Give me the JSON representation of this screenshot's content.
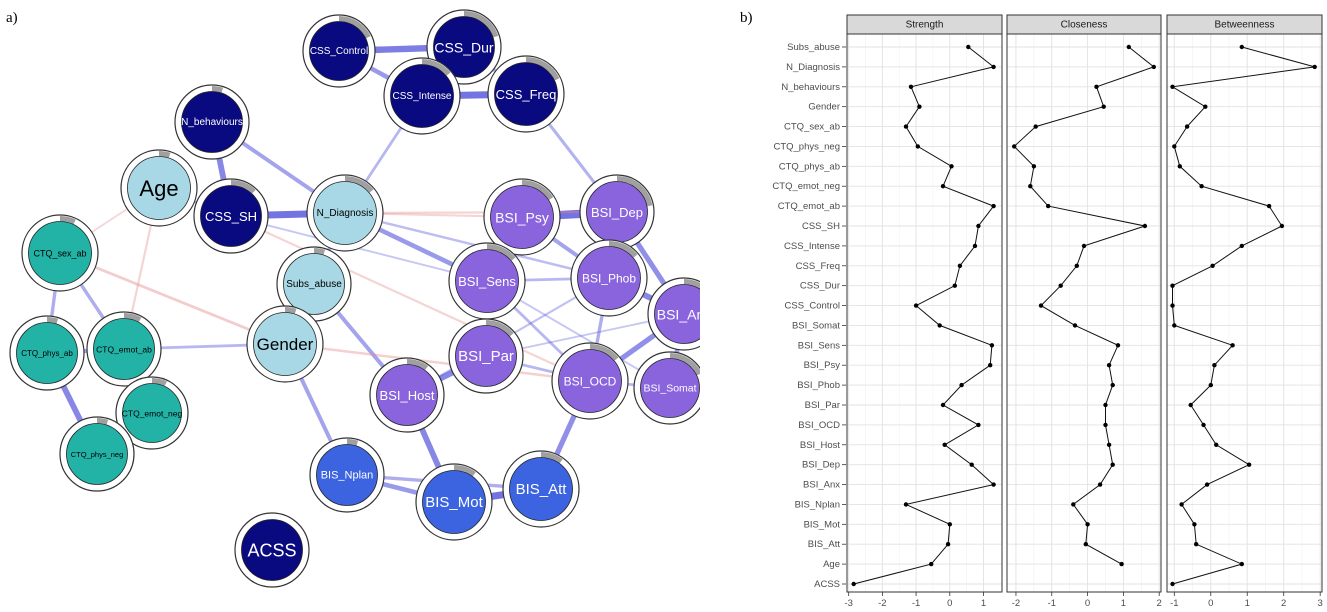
{
  "panel_labels": {
    "a": "a)",
    "b": "b)"
  },
  "colors": {
    "dark_navy": "#0a0a80",
    "light_blue": "#a8d8e6",
    "teal": "#22b2a6",
    "purple": "#8a64dc",
    "royal_blue": "#3c64e0",
    "positive_edge": "#5a5adc",
    "negative_edge": "#e48a8a",
    "ring_gray": "#a0a0a0"
  },
  "network": {
    "nodes": [
      {
        "id": "CSS_Control",
        "label": "CSS_Control",
        "group": "dark_navy",
        "pie": 0.82
      },
      {
        "id": "CSS_Dur",
        "label": "CSS_Dur",
        "group": "dark_navy",
        "pie": 0.8
      },
      {
        "id": "CSS_Intense",
        "label": "CSS_Intense",
        "group": "dark_navy",
        "pie": 0.86
      },
      {
        "id": "CSS_Freq",
        "label": "CSS_Freq",
        "group": "dark_navy",
        "pie": 0.82
      },
      {
        "id": "N_behaviours",
        "label": "N_behaviours",
        "group": "dark_navy",
        "pie": 0.95
      },
      {
        "id": "Age",
        "label": "Age",
        "group": "light_blue",
        "pie": 0.95
      },
      {
        "id": "CSS_SH",
        "label": "CSS_SH",
        "group": "dark_navy",
        "pie": 0.88
      },
      {
        "id": "N_Diagnosis",
        "label": "N_Diagnosis",
        "group": "light_blue",
        "pie": 0.86
      },
      {
        "id": "BSI_Psy",
        "label": "BSI_Psy",
        "group": "purple",
        "pie": 0.84
      },
      {
        "id": "BSI_Dep",
        "label": "BSI_Dep",
        "group": "purple",
        "pie": 0.78
      },
      {
        "id": "CTQ_sex_ab",
        "label": "CTQ_sex_ab",
        "group": "teal",
        "pie": 0.93
      },
      {
        "id": "Subs_abuse",
        "label": "Subs_abuse",
        "group": "light_blue",
        "pie": 0.95
      },
      {
        "id": "BSI_Sens",
        "label": "BSI_Sens",
        "group": "purple",
        "pie": 0.86
      },
      {
        "id": "BSI_Phob",
        "label": "BSI_Phob",
        "group": "purple",
        "pie": 0.86
      },
      {
        "id": "BSI_Anx",
        "label": "BSI_Anx",
        "group": "purple",
        "pie": 0.82
      },
      {
        "id": "Gender",
        "label": "Gender",
        "group": "light_blue",
        "pie": 0.95
      },
      {
        "id": "CTQ_phys_ab",
        "label": "CTQ_phys_ab",
        "group": "teal",
        "pie": 0.95
      },
      {
        "id": "CTQ_emot_ab",
        "label": "CTQ_emot_ab",
        "group": "teal",
        "pie": 0.92
      },
      {
        "id": "BSI_Par",
        "label": "BSI_Par",
        "group": "purple",
        "pie": 0.86
      },
      {
        "id": "BSI_OCD",
        "label": "BSI_OCD",
        "group": "purple",
        "pie": 0.86
      },
      {
        "id": "BSI_Somat",
        "label": "BSI_Somat",
        "group": "purple",
        "pie": 0.82
      },
      {
        "id": "BSI_Host",
        "label": "BSI_Host",
        "group": "purple",
        "pie": 0.9
      },
      {
        "id": "CTQ_emot_neg",
        "label": "CTQ_emot_neg",
        "group": "teal",
        "pie": 0.93
      },
      {
        "id": "CTQ_phys_neg",
        "label": "CTQ_phys_neg",
        "group": "teal",
        "pie": 0.95
      },
      {
        "id": "BIS_Nplan",
        "label": "BIS_Nplan",
        "group": "royal_blue",
        "pie": 0.95
      },
      {
        "id": "BIS_Mot",
        "label": "BIS_Mot",
        "group": "royal_blue",
        "pie": 0.9
      },
      {
        "id": "BIS_Att",
        "label": "BIS_Att",
        "group": "royal_blue",
        "pie": 0.9
      },
      {
        "id": "ACSS",
        "label": "ACSS",
        "group": "dark_navy",
        "pie": 0.0
      }
    ],
    "edges": [
      {
        "source": "CSS_Control",
        "target": "CSS_Dur",
        "weight": 0.9,
        "sign": "+"
      },
      {
        "source": "CSS_Control",
        "target": "CSS_Intense",
        "weight": 0.6,
        "sign": "+"
      },
      {
        "source": "CSS_Dur",
        "target": "CSS_Intense",
        "weight": 0.8,
        "sign": "+"
      },
      {
        "source": "CSS_Intense",
        "target": "CSS_Freq",
        "weight": 1.0,
        "sign": "+"
      },
      {
        "source": "CSS_Dur",
        "target": "CSS_Freq",
        "weight": 0.4,
        "sign": "+"
      },
      {
        "source": "CSS_Freq",
        "target": "BSI_Dep",
        "weight": 0.35,
        "sign": "+"
      },
      {
        "source": "CSS_Intense",
        "target": "N_Diagnosis",
        "weight": 0.3,
        "sign": "+"
      },
      {
        "source": "N_behaviours",
        "target": "CSS_SH",
        "weight": 0.8,
        "sign": "+"
      },
      {
        "source": "N_behaviours",
        "target": "N_Diagnosis",
        "weight": 0.5,
        "sign": "+"
      },
      {
        "source": "Age",
        "target": "CSS_SH",
        "weight": 0.3,
        "sign": "+"
      },
      {
        "source": "Age",
        "target": "CTQ_sex_ab",
        "weight": 0.15,
        "sign": "-"
      },
      {
        "source": "Age",
        "target": "CTQ_emot_ab",
        "weight": 0.2,
        "sign": "-"
      },
      {
        "source": "CSS_SH",
        "target": "N_Diagnosis",
        "weight": 1.0,
        "sign": "+"
      },
      {
        "source": "CSS_SH",
        "target": "BSI_Sens",
        "weight": 0.15,
        "sign": "+"
      },
      {
        "source": "N_Diagnosis",
        "target": "BSI_Psy",
        "weight": 0.2,
        "sign": "-"
      },
      {
        "source": "N_Diagnosis",
        "target": "BSI_Sens",
        "weight": 0.6,
        "sign": "+"
      },
      {
        "source": "N_Diagnosis",
        "target": "Subs_abuse",
        "weight": 0.4,
        "sign": "+"
      },
      {
        "source": "N_Diagnosis",
        "target": "BSI_Phob",
        "weight": 0.25,
        "sign": "+"
      },
      {
        "source": "BSI_Psy",
        "target": "BSI_Dep",
        "weight": 1.2,
        "sign": "+"
      },
      {
        "source": "BSI_Psy",
        "target": "BSI_Sens",
        "weight": 0.5,
        "sign": "+"
      },
      {
        "source": "BSI_Psy",
        "target": "BSI_Phob",
        "weight": 0.5,
        "sign": "+"
      },
      {
        "source": "BSI_Dep",
        "target": "BSI_Phob",
        "weight": 0.6,
        "sign": "+"
      },
      {
        "source": "BSI_Dep",
        "target": "BSI_Anx",
        "weight": 0.7,
        "sign": "+"
      },
      {
        "source": "BSI_Sens",
        "target": "BSI_Phob",
        "weight": 0.3,
        "sign": "+"
      },
      {
        "source": "BSI_Sens",
        "target": "BSI_Par",
        "weight": 0.4,
        "sign": "+"
      },
      {
        "source": "BSI_Sens",
        "target": "BSI_OCD",
        "weight": 0.3,
        "sign": "+"
      },
      {
        "source": "BSI_Phob",
        "target": "BSI_Anx",
        "weight": 0.8,
        "sign": "+"
      },
      {
        "source": "BSI_Phob",
        "target": "BSI_OCD",
        "weight": 0.4,
        "sign": "+"
      },
      {
        "source": "BSI_Anx",
        "target": "BSI_OCD",
        "weight": 0.7,
        "sign": "+"
      },
      {
        "source": "BSI_Anx",
        "target": "BSI_Somat",
        "weight": 0.6,
        "sign": "+"
      },
      {
        "source": "BSI_OCD",
        "target": "BSI_Somat",
        "weight": 0.3,
        "sign": "+"
      },
      {
        "source": "BSI_OCD",
        "target": "BIS_Att",
        "weight": 0.7,
        "sign": "+"
      },
      {
        "source": "BSI_OCD",
        "target": "BSI_Par",
        "weight": 0.3,
        "sign": "+"
      },
      {
        "source": "BSI_Par",
        "target": "BSI_Host",
        "weight": 0.8,
        "sign": "+"
      },
      {
        "source": "BSI_Host",
        "target": "BIS_Mot",
        "weight": 0.8,
        "sign": "+"
      },
      {
        "source": "BSI_Host",
        "target": "BSI_Phob",
        "weight": 0.2,
        "sign": "+"
      },
      {
        "source": "Subs_abuse",
        "target": "BSI_Host",
        "weight": 0.5,
        "sign": "+"
      },
      {
        "source": "Subs_abuse",
        "target": "Gender",
        "weight": 0.3,
        "sign": "+"
      },
      {
        "source": "Gender",
        "target": "BIS_Nplan",
        "weight": 0.5,
        "sign": "+"
      },
      {
        "source": "Gender",
        "target": "CTQ_emot_ab",
        "weight": 0.3,
        "sign": "+"
      },
      {
        "source": "Gender",
        "target": "BSI_OCD",
        "weight": 0.25,
        "sign": "-"
      },
      {
        "source": "Gender",
        "target": "CTQ_sex_ab",
        "weight": 0.3,
        "sign": "-"
      },
      {
        "source": "CSS_SH",
        "target": "BSI_OCD",
        "weight": 0.2,
        "sign": "-"
      },
      {
        "source": "N_Diagnosis",
        "target": "BSI_Dep",
        "weight": 0.2,
        "sign": "-"
      },
      {
        "source": "CTQ_sex_ab",
        "target": "CTQ_phys_ab",
        "weight": 0.4,
        "sign": "+"
      },
      {
        "source": "CTQ_sex_ab",
        "target": "CTQ_emot_ab",
        "weight": 0.4,
        "sign": "+"
      },
      {
        "source": "CTQ_phys_ab",
        "target": "CTQ_emot_ab",
        "weight": 0.5,
        "sign": "+"
      },
      {
        "source": "CTQ_phys_ab",
        "target": "CTQ_phys_neg",
        "weight": 0.8,
        "sign": "+"
      },
      {
        "source": "CTQ_emot_ab",
        "target": "CTQ_emot_neg",
        "weight": 0.6,
        "sign": "+"
      },
      {
        "source": "CTQ_emot_neg",
        "target": "CTQ_phys_neg",
        "weight": 0.5,
        "sign": "+"
      },
      {
        "source": "BIS_Nplan",
        "target": "BIS_Mot",
        "weight": 0.6,
        "sign": "+"
      },
      {
        "source": "BIS_Nplan",
        "target": "BIS_Att",
        "weight": 0.4,
        "sign": "+"
      },
      {
        "source": "BIS_Mot",
        "target": "BIS_Att",
        "weight": 1.0,
        "sign": "+"
      },
      {
        "source": "BSI_Sens",
        "target": "BSI_Somat",
        "weight": 0.15,
        "sign": "+"
      },
      {
        "source": "BSI_Par",
        "target": "BSI_Anx",
        "weight": 0.15,
        "sign": "+"
      }
    ]
  },
  "chart_data": {
    "type": "line",
    "facets": [
      "Strength",
      "Closeness",
      "Betweenness"
    ],
    "categories": [
      "Subs_abuse",
      "N_Diagnosis",
      "N_behaviours",
      "Gender",
      "CTQ_sex_ab",
      "CTQ_phys_neg",
      "CTQ_phys_ab",
      "CTQ_emot_neg",
      "CTQ_emot_ab",
      "CSS_SH",
      "CSS_Intense",
      "CSS_Freq",
      "CSS_Dur",
      "CSS_Control",
      "BSI_Somat",
      "BSI_Sens",
      "BSI_Psy",
      "BSI_Phob",
      "BSI_Par",
      "BSI_OCD",
      "BSI_Host",
      "BSI_Dep",
      "BSI_Anx",
      "BIS_Nplan",
      "BIS_Mot",
      "BIS_Att",
      "Age",
      "ACSS"
    ],
    "series": [
      {
        "name": "Strength",
        "values": [
          0.55,
          1.3,
          -1.15,
          -0.9,
          -1.3,
          -0.95,
          0.05,
          -0.2,
          1.3,
          0.85,
          0.75,
          0.3,
          0.15,
          -1.0,
          -0.3,
          1.25,
          1.2,
          0.35,
          -0.2,
          0.85,
          -0.15,
          0.65,
          1.3,
          -1.3,
          0.0,
          -0.05,
          -0.55,
          -2.85
        ]
      },
      {
        "name": "Closeness",
        "values": [
          1.15,
          1.85,
          0.25,
          0.45,
          -1.45,
          -2.05,
          -1.5,
          -1.6,
          -1.1,
          1.6,
          -0.1,
          -0.3,
          -0.75,
          -1.3,
          -0.35,
          0.85,
          0.6,
          0.7,
          0.5,
          0.5,
          0.6,
          0.7,
          0.35,
          -0.4,
          0.0,
          -0.05,
          0.95,
          null
        ]
      },
      {
        "name": "Betweenness",
        "values": [
          0.85,
          2.85,
          -1.05,
          -0.15,
          -0.65,
          -1.0,
          -0.85,
          -0.25,
          1.6,
          1.95,
          0.85,
          0.05,
          -1.05,
          -1.05,
          -1.0,
          0.6,
          0.1,
          0.0,
          -0.55,
          -0.2,
          0.15,
          1.05,
          -0.1,
          -0.8,
          -0.45,
          -0.4,
          0.85,
          -1.05
        ]
      }
    ],
    "x_ticks": [
      [
        "-3",
        "-2",
        "-1",
        "0",
        "1"
      ],
      [
        "-2",
        "-1",
        "0",
        "1",
        "2"
      ],
      [
        "-1",
        "0",
        "1",
        "2",
        "3"
      ]
    ],
    "xlim": [
      [
        -3.05,
        1.55
      ],
      [
        -2.25,
        2.05
      ],
      [
        -1.2,
        3.05
      ]
    ],
    "xlabel": "",
    "ylabel": "",
    "grid": true
  }
}
